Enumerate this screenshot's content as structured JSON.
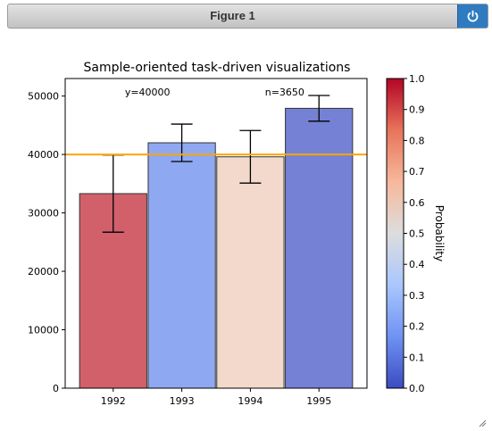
{
  "window": {
    "title": "Figure 1"
  },
  "icons": {
    "close": "power-icon",
    "resize": "resize-grip-icon"
  },
  "chart_data": {
    "type": "bar",
    "title": "Sample-oriented task-driven visualizations",
    "categories": [
      "1992",
      "1993",
      "1994",
      "1995"
    ],
    "values": [
      33300,
      42000,
      39600,
      47900
    ],
    "errors": [
      6600,
      3200,
      4500,
      2200
    ],
    "bar_colors": [
      "#d1606b",
      "#8fa8f2",
      "#f2d9cc",
      "#7581d4"
    ],
    "ylim": [
      0,
      53000
    ],
    "yticks": [
      0,
      10000,
      20000,
      30000,
      40000,
      50000
    ],
    "ytick_labels": [
      "0",
      "10000",
      "20000",
      "30000",
      "40000",
      "50000"
    ],
    "xlabel": "",
    "ylabel": "",
    "reference_line": {
      "y": 40000,
      "color": "#ffa500"
    },
    "annotations": [
      {
        "text": "y=40000",
        "x": 0.5,
        "y": 50700
      },
      {
        "text": "n=3650",
        "x": 2.5,
        "y": 50700
      }
    ],
    "colorbar": {
      "label": "Probability",
      "range": [
        0.0,
        1.0
      ],
      "ticks": [
        0.0,
        0.1,
        0.2,
        0.3,
        0.4,
        0.5,
        0.6,
        0.7,
        0.8,
        0.9,
        1.0
      ],
      "tick_labels": [
        "0.0",
        "0.1",
        "0.2",
        "0.3",
        "0.4",
        "0.5",
        "0.6",
        "0.7",
        "0.8",
        "0.9",
        "1.0"
      ],
      "colormap": "coolwarm",
      "gradient_stops": [
        "#3b4cc0",
        "#6f92f3",
        "#aac7fd",
        "#dddddd",
        "#f7b89c",
        "#e7745b",
        "#b40426"
      ]
    },
    "grid": false,
    "legend": "none"
  }
}
